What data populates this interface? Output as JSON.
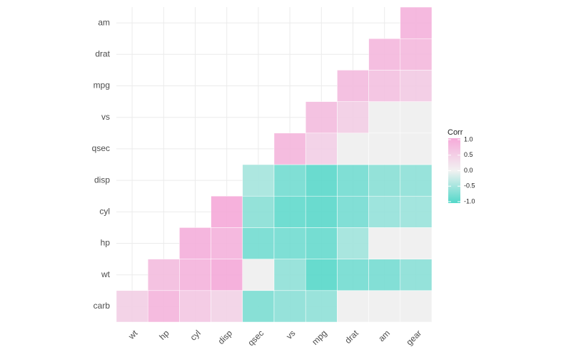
{
  "chart_data": {
    "type": "heatmap",
    "x_categories": [
      "wt",
      "hp",
      "cyl",
      "disp",
      "qsec",
      "vs",
      "mpg",
      "drat",
      "am",
      "gear"
    ],
    "y_categories": [
      "carb",
      "wt",
      "hp",
      "cyl",
      "disp",
      "qsec",
      "vs",
      "mpg",
      "drat",
      "am"
    ],
    "values": [
      [
        0.43,
        0.75,
        0.53,
        0.39,
        -0.66,
        -0.57,
        -0.55,
        null,
        null,
        null
      ],
      [
        null,
        0.66,
        0.78,
        0.89,
        null,
        -0.55,
        -0.87,
        -0.71,
        -0.69,
        -0.58
      ],
      [
        null,
        null,
        0.83,
        0.79,
        -0.71,
        -0.72,
        -0.78,
        -0.45,
        null,
        null
      ],
      [
        null,
        null,
        null,
        0.9,
        -0.59,
        -0.81,
        -0.85,
        -0.7,
        -0.52,
        -0.49
      ],
      [
        null,
        null,
        null,
        null,
        -0.43,
        -0.71,
        -0.85,
        -0.71,
        -0.59,
        -0.56
      ],
      [
        null,
        null,
        null,
        null,
        null,
        0.74,
        0.42,
        null,
        null,
        null
      ],
      [
        null,
        null,
        null,
        null,
        null,
        null,
        0.66,
        0.44,
        null,
        null
      ],
      [
        null,
        null,
        null,
        null,
        null,
        null,
        null,
        0.68,
        0.6,
        0.48
      ],
      [
        null,
        null,
        null,
        null,
        null,
        null,
        null,
        null,
        0.71,
        0.7
      ],
      [
        null,
        null,
        null,
        null,
        null,
        null,
        null,
        null,
        null,
        0.79
      ]
    ],
    "legend_title": "Corr",
    "clim": [
      -1,
      1
    ],
    "cticks": [
      {
        "value": 1,
        "label": "1.0"
      },
      0.5,
      {
        "value": 0,
        "label": "0.0"
      },
      -0.5,
      {
        "value": -1,
        "label": "-1.0"
      }
    ],
    "colors": {
      "low": "#3fd3c3",
      "mid": "#f0f0f0",
      "high": "#f5a0d5"
    },
    "grid": true
  }
}
